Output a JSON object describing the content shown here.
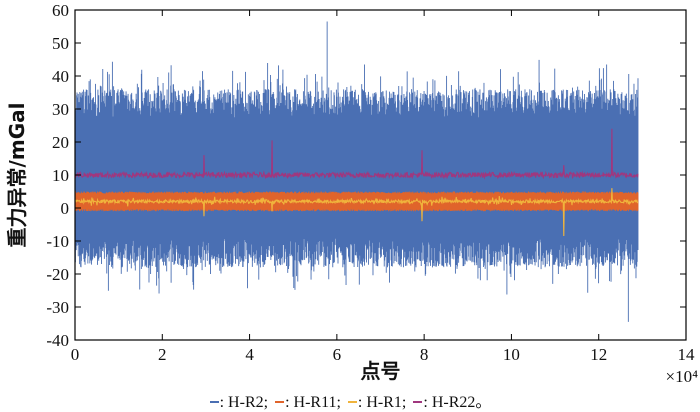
{
  "chart_data": {
    "type": "line",
    "xlabel": "点号",
    "ylabel": "重力异常/mGal",
    "x_exponent_label": "×10⁴",
    "xlim": [
      0,
      14
    ],
    "ylim": [
      -40,
      60
    ],
    "x_ticks": [
      "0",
      "2",
      "4",
      "6",
      "8",
      "10",
      "12",
      "14"
    ],
    "y_ticks": [
      "-40",
      "-30",
      "-20",
      "-10",
      "0",
      "10",
      "20",
      "30",
      "40",
      "50",
      "60"
    ],
    "x_data_range": [
      0,
      12.9
    ],
    "grid": false,
    "legend_position": "bottom",
    "series": [
      {
        "name": "H-R2",
        "color": "#4a6fb3",
        "baseline": 8,
        "noise_band": [
          -18,
          36
        ],
        "extremes": [
          -34.5,
          56.5
        ]
      },
      {
        "name": "H-R11",
        "color": "#e0642b",
        "baseline": 2,
        "noise_band": [
          -1,
          5
        ]
      },
      {
        "name": "H-R1",
        "color": "#f0b43c",
        "baseline": 2,
        "noise_band": [
          0.5,
          3.5
        ],
        "spikes": [
          {
            "x": 2.95,
            "y": -2.5
          },
          {
            "x": 4.52,
            "y": -1
          },
          {
            "x": 7.95,
            "y": -4
          },
          {
            "x": 11.2,
            "y": -8.5
          },
          {
            "x": 12.3,
            "y": 6
          }
        ]
      },
      {
        "name": "H-R22",
        "color": "#a0377e",
        "baseline": 10,
        "noise_band": [
          9,
          11.5
        ],
        "spikes": [
          {
            "x": 2.95,
            "y": 16
          },
          {
            "x": 4.52,
            "y": 20.5
          },
          {
            "x": 7.95,
            "y": 17.5
          },
          {
            "x": 11.2,
            "y": 13
          },
          {
            "x": 12.3,
            "y": 24
          }
        ]
      }
    ]
  },
  "legend": {
    "items": [
      {
        "sep": "—",
        "label": ": H-R2;",
        "color": "#4a6fb3"
      },
      {
        "sep": "—",
        "label": ": H-R11;",
        "color": "#e0642b"
      },
      {
        "sep": "—",
        "label": ": H-R1;",
        "color": "#f0b43c"
      },
      {
        "sep": "—",
        "label": ": H-R22。",
        "color": "#a0377e"
      }
    ]
  }
}
